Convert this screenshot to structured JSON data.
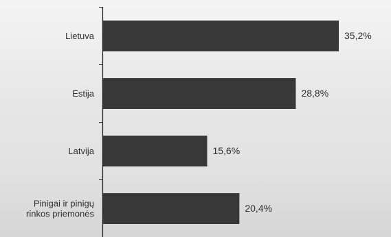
{
  "chart_data": {
    "type": "bar",
    "orientation": "horizontal",
    "categories": [
      [
        "Lietuva"
      ],
      [
        "Estija"
      ],
      [
        "Latvija"
      ],
      [
        "Pinigai ir pinigų",
        "rinkos priemonės"
      ]
    ],
    "values": [
      35.2,
      28.8,
      15.6,
      20.4
    ],
    "value_labels": [
      "35,2%",
      "28,8%",
      "15,6%",
      "20,4%"
    ],
    "title": "",
    "xlabel": "",
    "ylabel": "",
    "xlim": [
      0,
      35.2
    ],
    "grid": false,
    "legend": "none",
    "colors": {
      "bar": "#383838",
      "axis": "#1e1e1e",
      "text": "#2f2f2f"
    }
  }
}
